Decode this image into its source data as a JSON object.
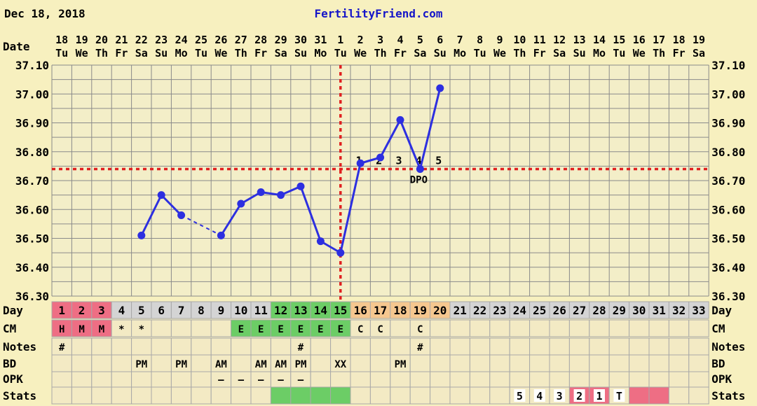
{
  "header": {
    "date": "Dec 18, 2018",
    "site": "FertilityFriend.com"
  },
  "colors": {
    "background": "#f7f0bf",
    "plot_background": "#f3eec8",
    "grid": "#8a8a8a",
    "line": "#2d2fe0",
    "coverline": "#e02020",
    "site_link": "#1515c8",
    "menstrual": "#ee6e84",
    "fertile": "#6ccd66",
    "luteal": "#f5c78f",
    "table_row": "#f3eac4",
    "day_row": "#d4d4d4"
  },
  "labels": {
    "date": "Date",
    "day": "Day",
    "cm": "CM",
    "notes": "Notes",
    "bd": "BD",
    "opk": "OPK",
    "stats": "Stats",
    "dpo": "DPO"
  },
  "chart_data": {
    "type": "line",
    "title": "",
    "xlabel": "Date",
    "ylabel": "",
    "ylim": [
      36.3,
      37.1
    ],
    "ytick_labels": [
      "37.10",
      "37.00",
      "36.90",
      "36.80",
      "36.70",
      "36.60",
      "36.50",
      "36.40",
      "36.30"
    ],
    "dates": [
      "18",
      "19",
      "20",
      "21",
      "22",
      "23",
      "24",
      "25",
      "26",
      "27",
      "28",
      "29",
      "30",
      "31",
      "1",
      "2",
      "3",
      "4",
      "5",
      "6",
      "7",
      "8",
      "9",
      "10",
      "11",
      "12",
      "13",
      "14",
      "15",
      "16",
      "17",
      "18",
      "19"
    ],
    "weekdays": [
      "Tu",
      "We",
      "Th",
      "Fr",
      "Sa",
      "Su",
      "Mo",
      "Tu",
      "We",
      "Th",
      "Fr",
      "Sa",
      "Su",
      "Mo",
      "Tu",
      "We",
      "Th",
      "Fr",
      "Sa",
      "Su",
      "Mo",
      "Tu",
      "We",
      "Th",
      "Fr",
      "Sa",
      "Su",
      "Mo",
      "Tu",
      "We",
      "Th",
      "Fr",
      "Sa"
    ],
    "cycle_days": [
      "1",
      "2",
      "3",
      "4",
      "5",
      "6",
      "7",
      "8",
      "9",
      "10",
      "11",
      "12",
      "13",
      "14",
      "15",
      "16",
      "17",
      "18",
      "19",
      "20",
      "21",
      "22",
      "23",
      "24",
      "25",
      "26",
      "27",
      "28",
      "29",
      "30",
      "31",
      "32",
      "33"
    ],
    "temperatures": [
      null,
      null,
      null,
      null,
      36.51,
      36.65,
      36.58,
      null,
      36.51,
      36.62,
      36.66,
      36.65,
      36.68,
      36.49,
      36.45,
      36.76,
      36.78,
      36.91,
      36.74,
      37.02,
      null,
      null,
      null,
      null,
      null,
      null,
      null,
      null,
      null,
      null,
      null,
      null,
      null
    ],
    "coverline": 36.74,
    "ovulation_day": 15,
    "dpo_labels": [
      "1",
      "2",
      "3",
      "4",
      "5"
    ],
    "dpo_days": [
      16,
      17,
      18,
      19,
      20
    ],
    "rows": {
      "cm": [
        "H",
        "M",
        "M",
        "*",
        "*",
        "",
        "",
        "",
        "",
        "E",
        "E",
        "E",
        "E",
        "E",
        "E",
        "C",
        "C",
        "",
        "C",
        "",
        "",
        "",
        "",
        "",
        "",
        "",
        "",
        "",
        "",
        "",
        "",
        "",
        ""
      ],
      "notes": [
        "#",
        "",
        "",
        "",
        "",
        "",
        "",
        "",
        "",
        "",
        "",
        "",
        "#",
        "",
        "",
        "",
        "",
        "",
        "#",
        "",
        "",
        "",
        "",
        "",
        "",
        "",
        "",
        "",
        "",
        "",
        "",
        "",
        ""
      ],
      "bd": [
        "",
        "",
        "",
        "",
        "PM",
        "",
        "PM",
        "",
        "AM",
        "",
        "AM",
        "AM",
        "PM",
        "",
        "XX",
        "",
        "",
        "PM",
        "",
        "",
        "",
        "",
        "",
        "",
        "",
        "",
        "",
        "",
        "",
        "",
        "",
        "",
        ""
      ],
      "opk": [
        "",
        "",
        "",
        "",
        "",
        "",
        "",
        "",
        "–",
        "–",
        "–",
        "–",
        "–",
        "",
        "",
        "",
        "",
        "",
        "",
        "",
        "",
        "",
        "",
        "",
        "",
        "",
        "",
        "",
        "",
        "",
        "",
        "",
        ""
      ],
      "stats": [
        "",
        "",
        "",
        "",
        "",
        "",
        "",
        "",
        "",
        "",
        "",
        "",
        "",
        "",
        "",
        "",
        "",
        "",
        "",
        "",
        "",
        "",
        "",
        "5",
        "4",
        "3",
        "2",
        "1",
        "T",
        "",
        "",
        "",
        ""
      ]
    },
    "day_colors": {
      "menstrual": [
        1,
        2,
        3
      ],
      "fertile": [
        12,
        13,
        14,
        15
      ],
      "luteal": [
        16,
        17,
        18,
        19,
        20
      ]
    },
    "cm_colors": {
      "menstrual": [
        1,
        2,
        3
      ],
      "fertile": [
        10,
        11,
        12,
        13,
        14,
        15
      ]
    },
    "stats_colors": {
      "fertile": [
        12,
        13,
        14,
        15
      ],
      "menstrual": [
        27,
        28,
        30,
        31
      ]
    }
  }
}
